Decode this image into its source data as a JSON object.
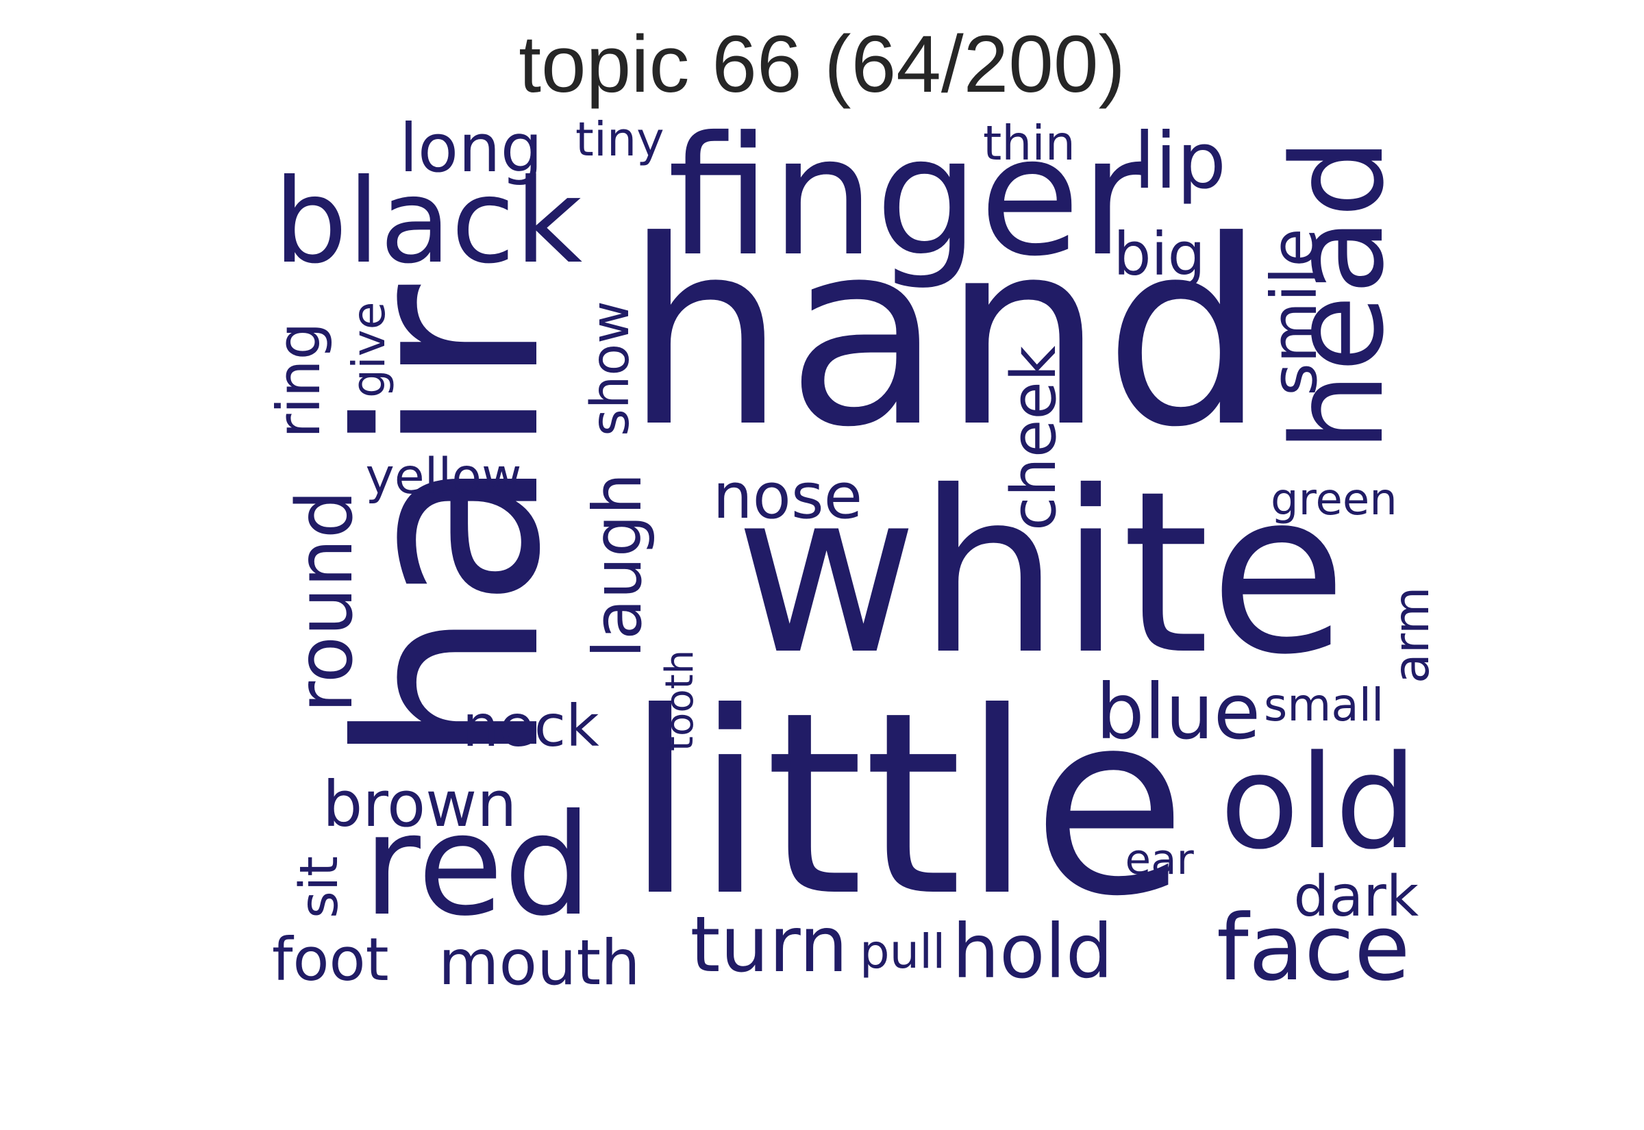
{
  "title": "topic 66 (64/200)",
  "colors": {
    "word": "#211c66",
    "title": "#262626",
    "background": "#ffffff"
  },
  "words": [
    {
      "key": "hand",
      "text": "hand",
      "rotated": false
    },
    {
      "key": "white",
      "text": "white",
      "rotated": false
    },
    {
      "key": "little",
      "text": "little",
      "rotated": false
    },
    {
      "key": "hair",
      "text": "hair",
      "rotated": true
    },
    {
      "key": "finger",
      "text": "finger",
      "rotated": false
    },
    {
      "key": "head",
      "text": "head",
      "rotated": true
    },
    {
      "key": "black",
      "text": "black",
      "rotated": false
    },
    {
      "key": "red",
      "text": "red",
      "rotated": false
    },
    {
      "key": "old",
      "text": "old",
      "rotated": false
    },
    {
      "key": "round",
      "text": "round",
      "rotated": true
    },
    {
      "key": "face",
      "text": "face",
      "rotated": false
    },
    {
      "key": "turn",
      "text": "turn",
      "rotated": false
    },
    {
      "key": "hold",
      "text": "hold",
      "rotated": false
    },
    {
      "key": "blue",
      "text": "blue",
      "rotated": false
    },
    {
      "key": "nose",
      "text": "nose",
      "rotated": false
    },
    {
      "key": "long",
      "text": "long",
      "rotated": false
    },
    {
      "key": "lip",
      "text": "lip",
      "rotated": false
    },
    {
      "key": "brown",
      "text": "brown",
      "rotated": false
    },
    {
      "key": "laugh",
      "text": "laugh",
      "rotated": true
    },
    {
      "key": "cheek",
      "text": "cheek",
      "rotated": true
    },
    {
      "key": "mouth",
      "text": "mouth",
      "rotated": false
    },
    {
      "key": "smile",
      "text": "smile",
      "rotated": true
    },
    {
      "key": "neck",
      "text": "neck",
      "rotated": false
    },
    {
      "key": "foot",
      "text": "foot",
      "rotated": false
    },
    {
      "key": "sit",
      "text": "sit",
      "rotated": true
    },
    {
      "key": "dark",
      "text": "dark",
      "rotated": false
    },
    {
      "key": "show",
      "text": "show",
      "rotated": true
    },
    {
      "key": "ring",
      "text": "ring",
      "rotated": true
    },
    {
      "key": "yellow",
      "text": "yellow",
      "rotated": false
    },
    {
      "key": "big",
      "text": "big",
      "rotated": false
    },
    {
      "key": "arm",
      "text": "arm",
      "rotated": true
    },
    {
      "key": "green",
      "text": "green",
      "rotated": false
    },
    {
      "key": "give",
      "text": "give",
      "rotated": true
    },
    {
      "key": "thin",
      "text": "thin",
      "rotated": false
    },
    {
      "key": "tiny",
      "text": "tiny",
      "rotated": false
    },
    {
      "key": "small",
      "text": "small",
      "rotated": false
    },
    {
      "key": "tooth",
      "text": "tooth",
      "rotated": true
    },
    {
      "key": "ear",
      "text": "ear",
      "rotated": false
    },
    {
      "key": "pull",
      "text": "pull",
      "rotated": false
    }
  ]
}
